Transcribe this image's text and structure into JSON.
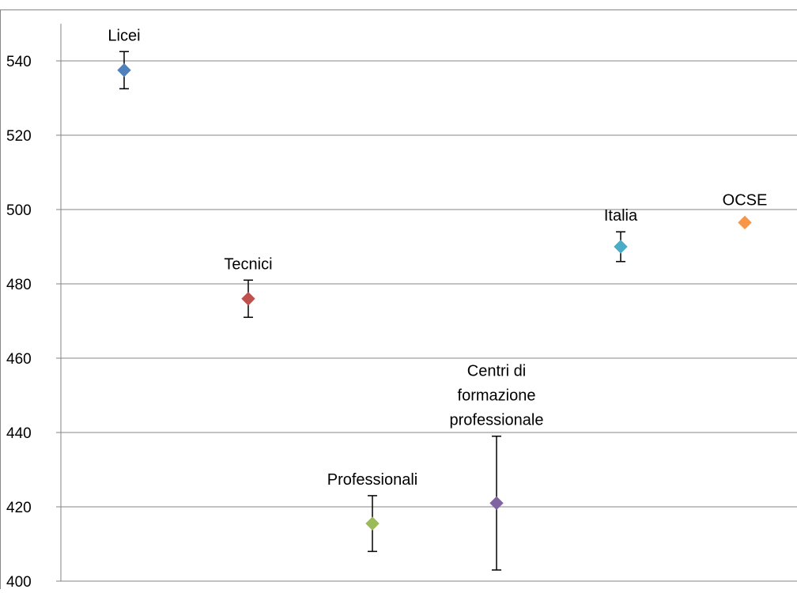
{
  "chart_data": {
    "type": "scatter",
    "title": "",
    "xlabel": "",
    "ylabel": "",
    "ylim": [
      400,
      550
    ],
    "yticks": [
      400,
      420,
      440,
      460,
      480,
      500,
      520,
      540
    ],
    "grid": true,
    "legend": "none",
    "points": [
      {
        "label": "Licei",
        "value": 537.5,
        "err_low": 532.5,
        "err_high": 542.5,
        "color": "#4f81bd"
      },
      {
        "label": "Tecnici",
        "value": 476,
        "err_low": 471,
        "err_high": 481,
        "color": "#c0504d"
      },
      {
        "label": "Professionali",
        "value": 415.5,
        "err_low": 408,
        "err_high": 423,
        "color": "#9bbb59"
      },
      {
        "label": "Centri di formazione professionale",
        "label_lines": [
          "Centri di",
          "formazione",
          "professionale"
        ],
        "value": 421,
        "err_low": 403,
        "err_high": 439,
        "color": "#8064a2"
      },
      {
        "label": "Italia",
        "value": 490,
        "err_low": 486,
        "err_high": 494,
        "color": "#4bacc6"
      },
      {
        "label": "OCSE",
        "value": 496.5,
        "err_low": null,
        "err_high": null,
        "color": "#f79646"
      }
    ]
  }
}
